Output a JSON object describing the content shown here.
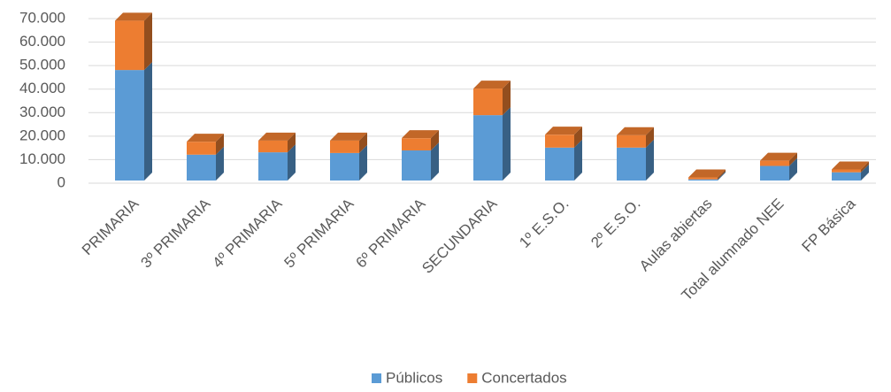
{
  "chart_data": {
    "type": "bar",
    "stacked": true,
    "categories": [
      "PRIMARIA",
      "3º PRIMARIA",
      "4º PRIMARIA",
      "5º PRIMARIA",
      "6º PRIMARIA",
      "SECUNDARIA",
      "1º E.S.O.",
      "2º E.S.O.",
      "Aulas abiertas",
      "Total alumnado NEE",
      "FP Básica"
    ],
    "series": [
      {
        "name": "Públicos",
        "color": "#5b9bd5",
        "values": [
          47000,
          11000,
          12000,
          11700,
          12800,
          27800,
          14000,
          14000,
          500,
          6200,
          3500
        ]
      },
      {
        "name": "Concertados",
        "color": "#ed7d31",
        "values": [
          21000,
          5500,
          5000,
          5300,
          5200,
          11300,
          5500,
          5300,
          800,
          2200,
          1200
        ]
      }
    ],
    "ylim": [
      0,
      70000
    ],
    "yticks": [
      {
        "value": 0,
        "label": "0"
      },
      {
        "value": 10000,
        "label": "10.000"
      },
      {
        "value": 20000,
        "label": "20.000"
      },
      {
        "value": 30000,
        "label": "30.000"
      },
      {
        "value": 40000,
        "label": "40.000"
      },
      {
        "value": 50000,
        "label": "50.000"
      },
      {
        "value": 60000,
        "label": "60.000"
      },
      {
        "value": 70000,
        "label": "70.000"
      }
    ],
    "grid": true,
    "legend": "bottom"
  }
}
